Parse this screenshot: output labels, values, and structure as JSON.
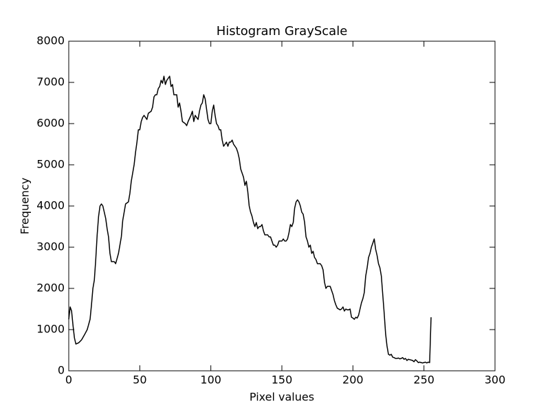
{
  "chart_data": {
    "type": "line",
    "title": "Histogram GrayScale",
    "x_label": "Pixel values",
    "y_label": "Frequency",
    "x": [
      0,
      1,
      2,
      3,
      4,
      5,
      7,
      9,
      11,
      13,
      15,
      16,
      17,
      18,
      19,
      20,
      21,
      22,
      23,
      24,
      25,
      26,
      27,
      28,
      29,
      30,
      32,
      33,
      35,
      37,
      38,
      39,
      40,
      42,
      43,
      44,
      45,
      46,
      47,
      48,
      49,
      50,
      51,
      52,
      53,
      55,
      56,
      58,
      59,
      60,
      61,
      62,
      63,
      64,
      65,
      66,
      67,
      68,
      69,
      71,
      72,
      73,
      74,
      76,
      77,
      78,
      79,
      80,
      82,
      83,
      84,
      86,
      87,
      88,
      89,
      91,
      92,
      93,
      94,
      95,
      96,
      97,
      98,
      99,
      100,
      101,
      102,
      103,
      104,
      105,
      106,
      107,
      108,
      109,
      110,
      111,
      112,
      113,
      114,
      115,
      116,
      117,
      118,
      119,
      120,
      121,
      122,
      123,
      124,
      125,
      126,
      127,
      128,
      129,
      130,
      131,
      132,
      133,
      134,
      135,
      136,
      137,
      138,
      139,
      140,
      141,
      142,
      143,
      144,
      145,
      146,
      147,
      148,
      149,
      150,
      151,
      152,
      153,
      154,
      155,
      156,
      157,
      158,
      159,
      160,
      161,
      162,
      163,
      164,
      165,
      166,
      167,
      168,
      169,
      170,
      171,
      172,
      173,
      174,
      175,
      177,
      178,
      179,
      180,
      181,
      182,
      184,
      185,
      186,
      187,
      188,
      189,
      191,
      192,
      193,
      194,
      195,
      196,
      197,
      198,
      199,
      200,
      201,
      202,
      203,
      204,
      205,
      206,
      207,
      208,
      209,
      210,
      211,
      212,
      213,
      214,
      215,
      216,
      217,
      218,
      219,
      220,
      221,
      222,
      223,
      224,
      225,
      226,
      227,
      228,
      229,
      230,
      231,
      232,
      233,
      234,
      235,
      236,
      237,
      238,
      239,
      240,
      241,
      242,
      243,
      244,
      245,
      246,
      247,
      248,
      249,
      250,
      251,
      252,
      253,
      254,
      255
    ],
    "series": [
      {
        "name": "Frequency",
        "color": "#000000",
        "values": [
          1250,
          1550,
          1450,
          1100,
          800,
          650,
          680,
          750,
          870,
          1000,
          1250,
          1600,
          2000,
          2200,
          2700,
          3300,
          3750,
          4000,
          4050,
          4000,
          3850,
          3700,
          3450,
          3250,
          2850,
          2650,
          2650,
          2600,
          2850,
          3250,
          3650,
          3850,
          4050,
          4100,
          4300,
          4600,
          4800,
          5000,
          5300,
          5550,
          5850,
          5850,
          6050,
          6150,
          6200,
          6100,
          6250,
          6300,
          6400,
          6650,
          6700,
          6700,
          6850,
          6900,
          7050,
          6980,
          7150,
          6950,
          7050,
          7150,
          6900,
          6950,
          6700,
          6700,
          6400,
          6500,
          6300,
          6050,
          6000,
          5950,
          6050,
          6200,
          6300,
          6050,
          6200,
          6100,
          6300,
          6450,
          6500,
          6700,
          6600,
          6350,
          6100,
          6000,
          6000,
          6300,
          6450,
          6200,
          6000,
          5950,
          5850,
          5850,
          5600,
          5450,
          5500,
          5550,
          5450,
          5550,
          5550,
          5600,
          5500,
          5450,
          5400,
          5300,
          5150,
          4900,
          4800,
          4700,
          4500,
          4600,
          4350,
          4000,
          3850,
          3750,
          3600,
          3500,
          3600,
          3450,
          3500,
          3500,
          3550,
          3400,
          3300,
          3300,
          3300,
          3250,
          3250,
          3150,
          3050,
          3050,
          3000,
          3050,
          3150,
          3150,
          3150,
          3200,
          3150,
          3150,
          3200,
          3350,
          3550,
          3500,
          3600,
          3950,
          4100,
          4150,
          4100,
          4000,
          3850,
          3800,
          3600,
          3250,
          3150,
          3000,
          3050,
          2850,
          2900,
          2750,
          2700,
          2600,
          2600,
          2550,
          2450,
          2150,
          2000,
          2050,
          2050,
          1950,
          1850,
          1700,
          1600,
          1520,
          1480,
          1500,
          1550,
          1450,
          1500,
          1480,
          1480,
          1500,
          1300,
          1280,
          1250,
          1300,
          1280,
          1350,
          1500,
          1650,
          1750,
          1900,
          2300,
          2500,
          2750,
          2850,
          3000,
          3100,
          3200,
          2950,
          2800,
          2600,
          2500,
          2300,
          1850,
          1400,
          900,
          600,
          400,
          380,
          400,
          330,
          320,
          300,
          300,
          310,
          290,
          300,
          320,
          280,
          300,
          250,
          280,
          270,
          260,
          250,
          220,
          270,
          240,
          200,
          210,
          200,
          190,
          200,
          210,
          190,
          210,
          200,
          1300
        ]
      }
    ],
    "xlim": [
      0,
      300
    ],
    "ylim": [
      0,
      8000
    ],
    "xticks": [
      0,
      50,
      100,
      150,
      200,
      250,
      300
    ],
    "yticks": [
      0,
      1000,
      2000,
      3000,
      4000,
      5000,
      6000,
      7000,
      8000
    ]
  }
}
